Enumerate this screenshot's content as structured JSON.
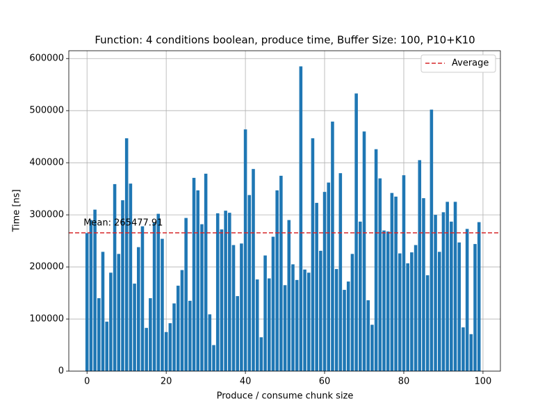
{
  "chart_data": {
    "type": "bar",
    "title": "Function: 4 conditions boolean, produce time, Buffer Size: 100, P10+K10",
    "x_label": "Produce / consume chunk size",
    "y_label": "Time [ns]",
    "color": "#1f77b4",
    "x": [
      0,
      1,
      2,
      3,
      4,
      5,
      6,
      7,
      8,
      9,
      10,
      11,
      12,
      13,
      14,
      15,
      16,
      17,
      18,
      19,
      20,
      21,
      22,
      23,
      24,
      25,
      26,
      27,
      28,
      29,
      30,
      31,
      32,
      33,
      34,
      35,
      36,
      37,
      38,
      39,
      40,
      41,
      42,
      43,
      44,
      45,
      46,
      47,
      48,
      49,
      50,
      51,
      52,
      53,
      54,
      55,
      56,
      57,
      58,
      59,
      60,
      61,
      62,
      63,
      64,
      65,
      66,
      67,
      68,
      69,
      70,
      71,
      72,
      73,
      74,
      75,
      76,
      77,
      78,
      79,
      80,
      81,
      82,
      83,
      84,
      85,
      86,
      87,
      88,
      89,
      90,
      91,
      92,
      93,
      94,
      95,
      96,
      97,
      98,
      99
    ],
    "values": [
      265000,
      290000,
      310000,
      140000,
      229000,
      95000,
      189000,
      359000,
      225000,
      328000,
      447000,
      360000,
      168000,
      238000,
      278000,
      83000,
      140000,
      285000,
      302000,
      254000,
      75000,
      92000,
      130000,
      164000,
      194000,
      294000,
      135000,
      371000,
      347000,
      282000,
      379000,
      109000,
      50000,
      303000,
      272000,
      308000,
      304000,
      242000,
      144000,
      245000,
      464000,
      338000,
      388000,
      176000,
      65000,
      222000,
      178000,
      258000,
      347000,
      375000,
      165000,
      290000,
      205000,
      175000,
      585000,
      195000,
      189000,
      447000,
      323000,
      231000,
      344000,
      362000,
      479000,
      196000,
      380000,
      156000,
      172000,
      225000,
      533000,
      287000,
      460000,
      136000,
      89000,
      426000,
      370000,
      270000,
      268000,
      342000,
      335000,
      226000,
      376000,
      207000,
      228000,
      242000,
      405000,
      332000,
      184000,
      502000,
      300000,
      229000,
      305000,
      325000,
      287000,
      325000,
      247000,
      84000,
      273000,
      71000,
      244000,
      286000
    ],
    "mean": 265477.91,
    "mean_label": "Mean: 265477.91",
    "mean_name": "Average",
    "mean_color": "#d62728",
    "xlim": [
      -4.6,
      104.4
    ],
    "ylim": [
      0,
      615000
    ],
    "xticks": [
      0,
      20,
      40,
      60,
      80,
      100
    ],
    "yticks": [
      0,
      100000,
      200000,
      300000,
      400000,
      500000,
      600000
    ],
    "grid": true,
    "legend": "upper right"
  }
}
